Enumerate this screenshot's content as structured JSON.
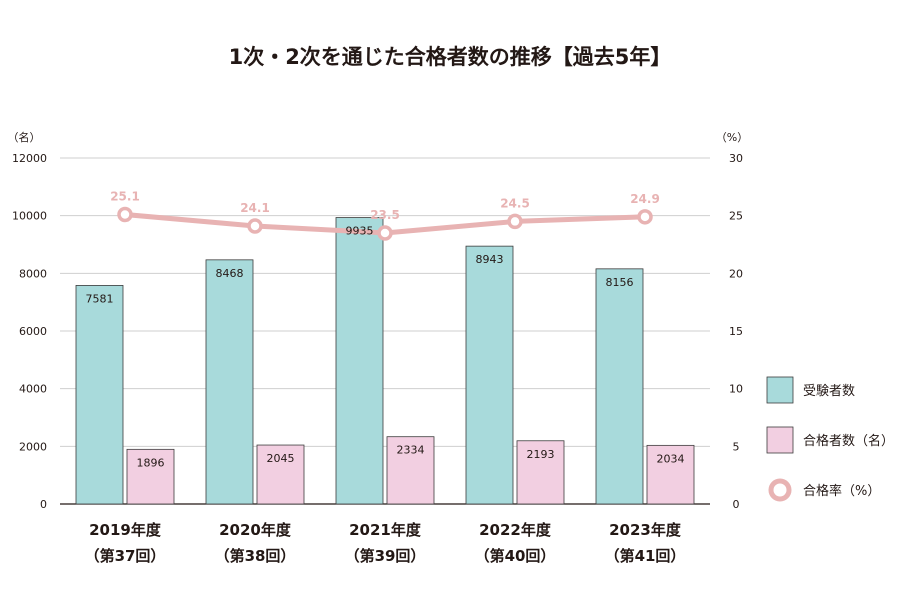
{
  "chart_data": {
    "type": "bar",
    "title": "1次・2次を通じた合格者数の推移【過去5年】",
    "categories": [
      {
        "year": "2019年度",
        "round": "（第37回）"
      },
      {
        "year": "2020年度",
        "round": "（第38回）"
      },
      {
        "year": "2021年度",
        "round": "（第39回）"
      },
      {
        "year": "2022年度",
        "round": "（第40回）"
      },
      {
        "year": "2023年度",
        "round": "（第41回）"
      }
    ],
    "series": [
      {
        "name": "受験者数",
        "kind": "bar",
        "axis": "left",
        "color": "#a8dadb",
        "values": [
          7581,
          8468,
          9935,
          8943,
          8156
        ]
      },
      {
        "name": "合格者数（名）",
        "kind": "bar",
        "axis": "left",
        "color": "#f2cfe1",
        "values": [
          1896,
          2045,
          2334,
          2193,
          2034
        ]
      },
      {
        "name": "合格率（%）",
        "kind": "line",
        "axis": "right",
        "color": "#e8b3b3",
        "values": [
          25.1,
          24.1,
          23.5,
          24.5,
          24.9
        ]
      }
    ],
    "left_axis": {
      "unit": "（名）",
      "ylim": [
        0,
        12000
      ],
      "ticks": [
        0,
        2000,
        4000,
        6000,
        8000,
        10000,
        12000
      ]
    },
    "right_axis": {
      "unit": "（%）",
      "ylim": [
        0,
        30
      ],
      "ticks": [
        0,
        5,
        10,
        15,
        20,
        25,
        30
      ]
    },
    "grid": true,
    "legend_position": "right"
  }
}
